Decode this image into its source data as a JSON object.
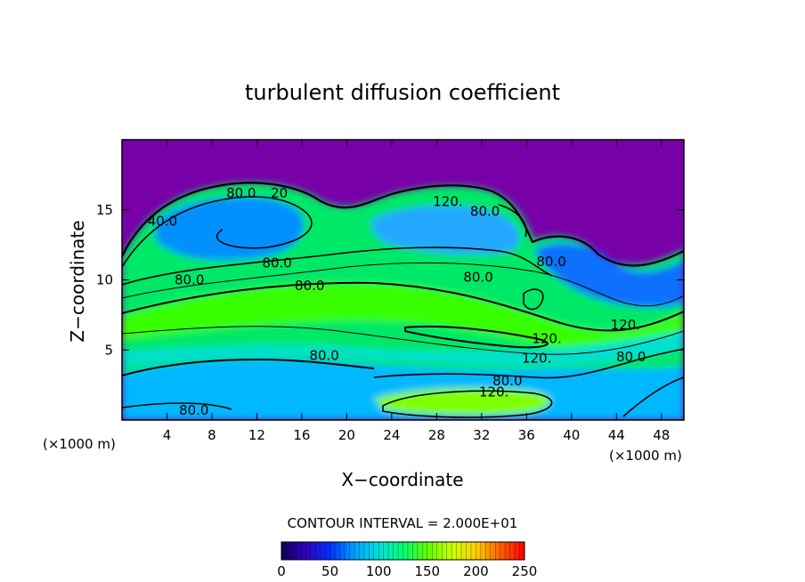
{
  "chart_data": {
    "type": "heatmap",
    "title": "turbulent diffusion coefficient",
    "xlabel": "X−coordinate",
    "ylabel": "Z−coordinate",
    "x_unit_left": "(×1000 m)",
    "x_unit_right": "(×1000 m)",
    "xlim": [
      0,
      50
    ],
    "ylim": [
      0,
      20
    ],
    "x_ticks": [
      4,
      8,
      12,
      16,
      20,
      24,
      28,
      32,
      36,
      40,
      44,
      48
    ],
    "y_ticks": [
      5,
      10,
      15
    ],
    "contour_interval_text": "CONTOUR INTERVAL = 2.000E+01",
    "colorbar": {
      "min": 0,
      "max": 250,
      "tick_values": [
        0,
        50,
        100,
        150,
        200,
        250
      ],
      "colors": [
        "#10005a",
        "#3300c0",
        "#0030ff",
        "#00a0ff",
        "#00e0e0",
        "#00ff70",
        "#60ff00",
        "#c8ff00",
        "#ffd000",
        "#ff6000",
        "#ff0000"
      ]
    },
    "background_color": "#7800a8",
    "contour_labels": [
      {
        "text": "80.0",
        "x": 10.6,
        "z": 16.2
      },
      {
        "text": "20",
        "x": 14,
        "z": 16.2
      },
      {
        "text": "40.0",
        "x": 3.6,
        "z": 14.2
      },
      {
        "text": "120.",
        "x": 29,
        "z": 15.6
      },
      {
        "text": "80.0",
        "x": 32.3,
        "z": 14.9
      },
      {
        "text": "80.0",
        "x": 13.8,
        "z": 11.2
      },
      {
        "text": "80.0",
        "x": 6,
        "z": 10
      },
      {
        "text": "80.0",
        "x": 16.7,
        "z": 9.6
      },
      {
        "text": "80.0",
        "x": 31.7,
        "z": 10.2
      },
      {
        "text": "80.0",
        "x": 38.2,
        "z": 11.3
      },
      {
        "text": "120.",
        "x": 37.8,
        "z": 5.8
      },
      {
        "text": "120.",
        "x": 36.9,
        "z": 4.4
      },
      {
        "text": "120.",
        "x": 44.8,
        "z": 6.8
      },
      {
        "text": "80.0",
        "x": 45.3,
        "z": 4.5
      },
      {
        "text": "80.0",
        "x": 18,
        "z": 4.6
      },
      {
        "text": "80.0",
        "x": 34.3,
        "z": 2.8
      },
      {
        "text": "120.",
        "x": 33.1,
        "z": 2
      },
      {
        "text": "80.0",
        "x": 6.4,
        "z": 0.7
      }
    ]
  }
}
